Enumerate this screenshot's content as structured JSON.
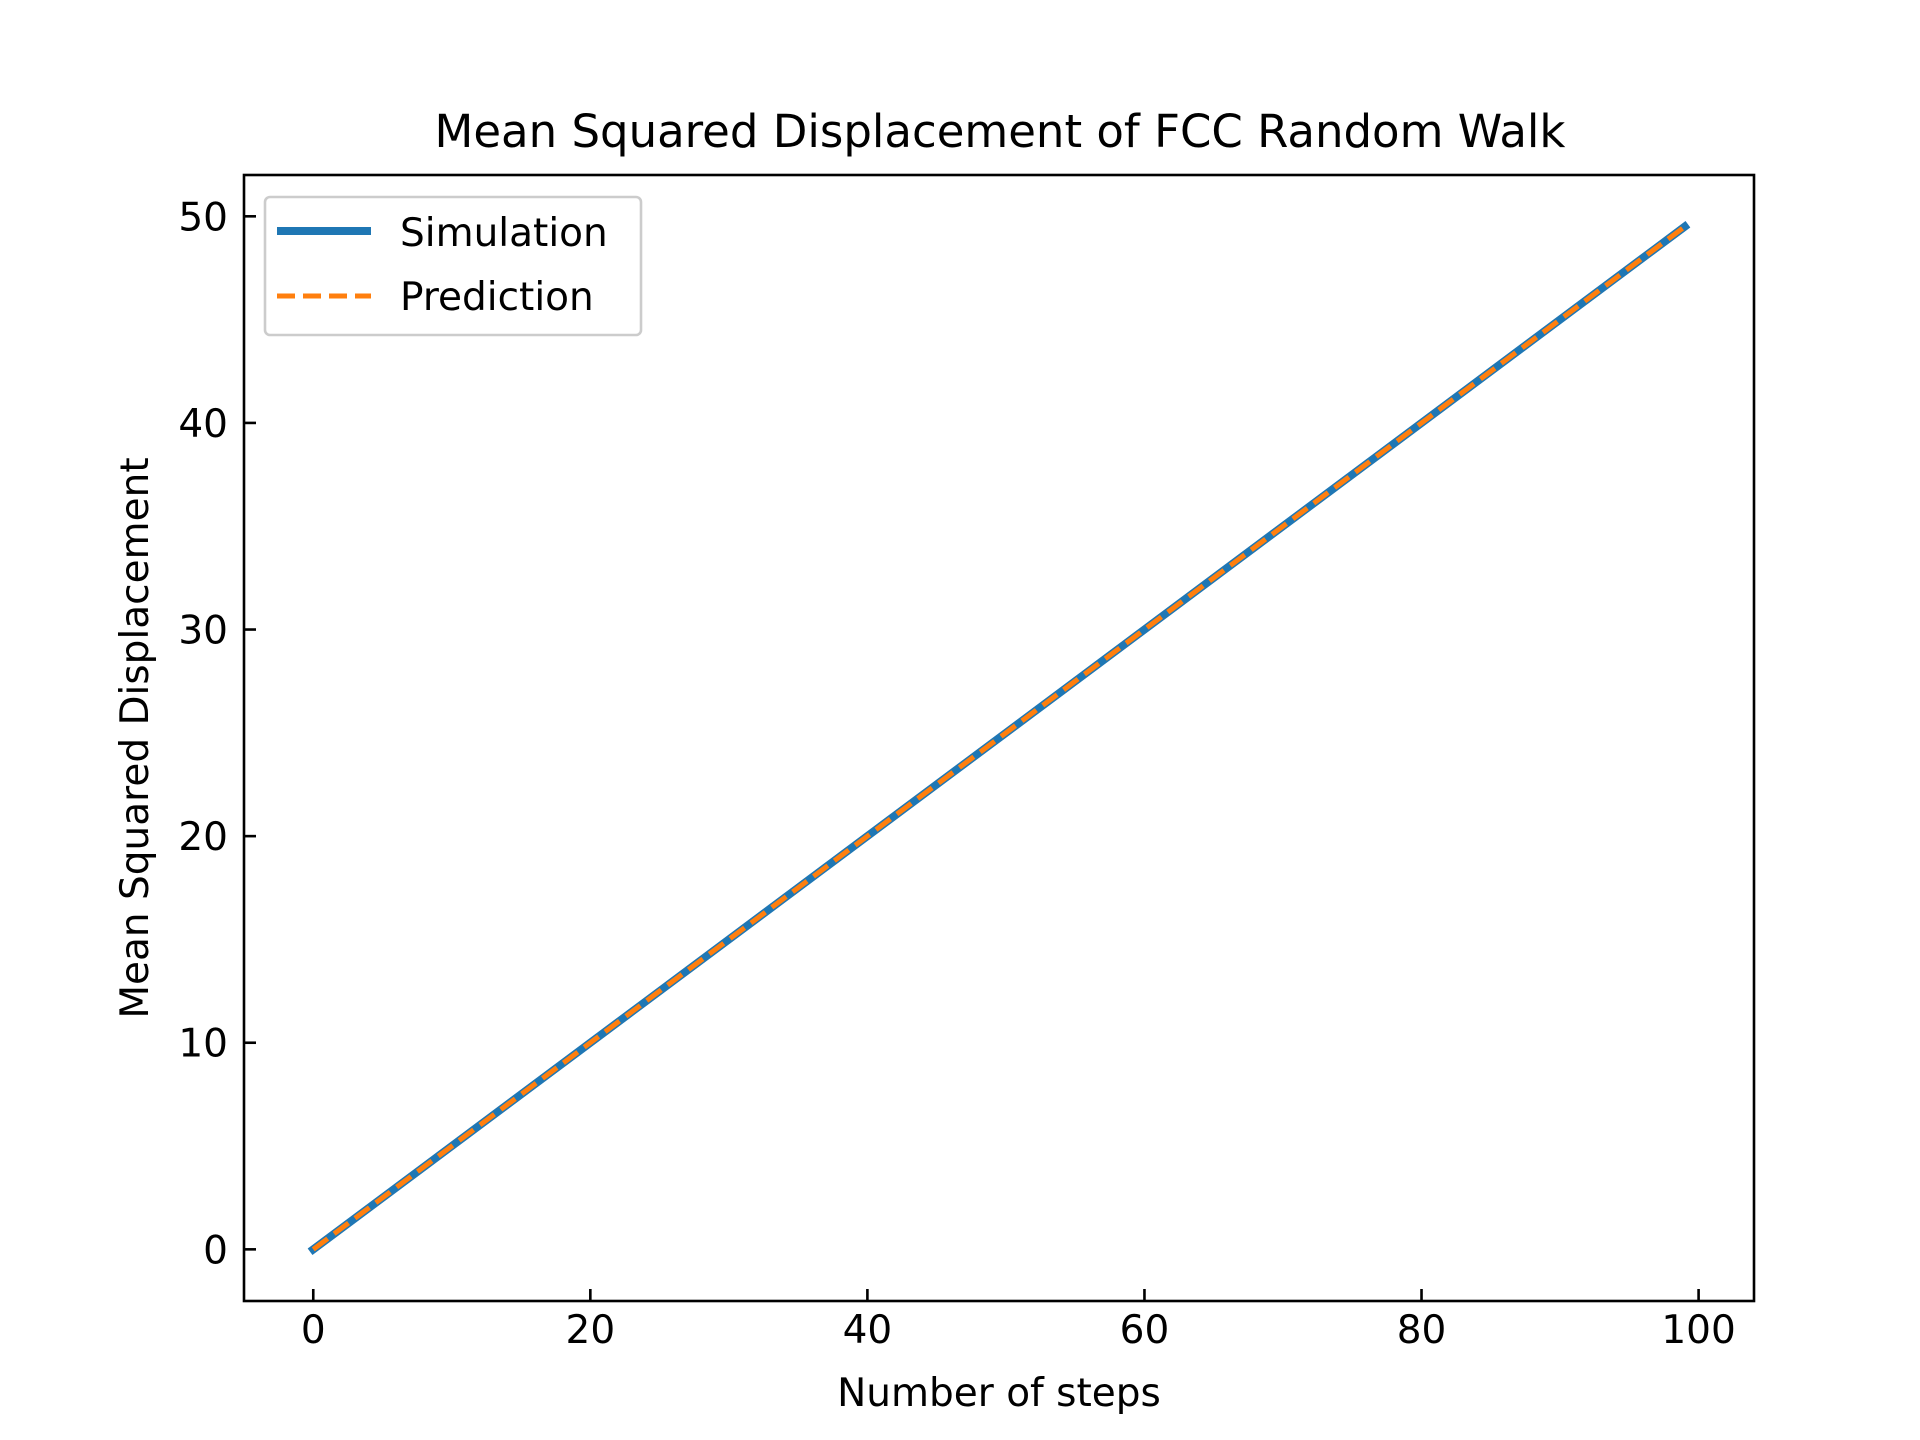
{
  "chart_data": {
    "type": "line",
    "title": "Mean Squared Displacement of FCC Random Walk",
    "xlabel": "Number of steps",
    "ylabel": "Mean Squared Displacement",
    "xlim": [
      -5,
      104
    ],
    "ylim": [
      -2.5,
      52
    ],
    "xticks": [
      0,
      20,
      40,
      60,
      80,
      100
    ],
    "yticks": [
      0,
      10,
      20,
      30,
      40,
      50
    ],
    "grid": false,
    "legend_position": "top-left",
    "series": [
      {
        "name": "Simulation",
        "color": "#1f77b4",
        "style": "solid",
        "x": [
          0,
          99
        ],
        "y": [
          0,
          49.5
        ]
      },
      {
        "name": "Prediction",
        "color": "#ff7f0e",
        "style": "dashed",
        "x": [
          0,
          99
        ],
        "y": [
          0,
          49.5
        ]
      }
    ]
  }
}
